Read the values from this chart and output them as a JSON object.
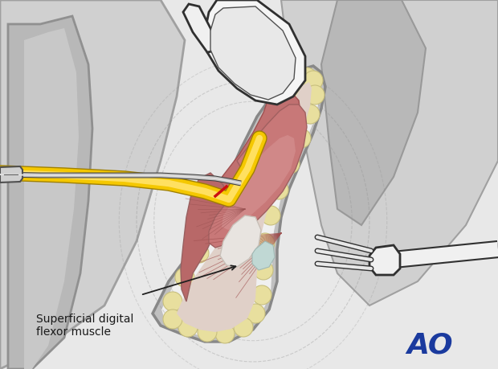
{
  "bg_color": "#e8e8e8",
  "bg_light": "#efefef",
  "gray_body": "#c8c8c8",
  "gray_dark": "#a0a0a0",
  "gray_band": "#b0b0b0",
  "white": "#ffffff",
  "fat_color": "#e8df9e",
  "fat_outline": "#c8bf7e",
  "muscle_red": "#c47878",
  "muscle_red2": "#b86060",
  "muscle_light": "#d49090",
  "muscle_fiber": "#a05858",
  "tendon_color": "#d4c8c0",
  "bone_pale": "#e8e0d8",
  "yellow_pin": "#f5c800",
  "yellow_dark": "#c8a000",
  "yellow_light": "#ffe060",
  "red_mark": "#cc1010",
  "teal_area": "#b8d8d0",
  "instrument_gray": "#c8c8c8",
  "instrument_dark": "#404040",
  "instrument_white": "#f2f2f2",
  "text_color": "#1a1a1a",
  "ao_color": "#1a3a9e",
  "label_text": "Superficial digital\nflexor muscle"
}
